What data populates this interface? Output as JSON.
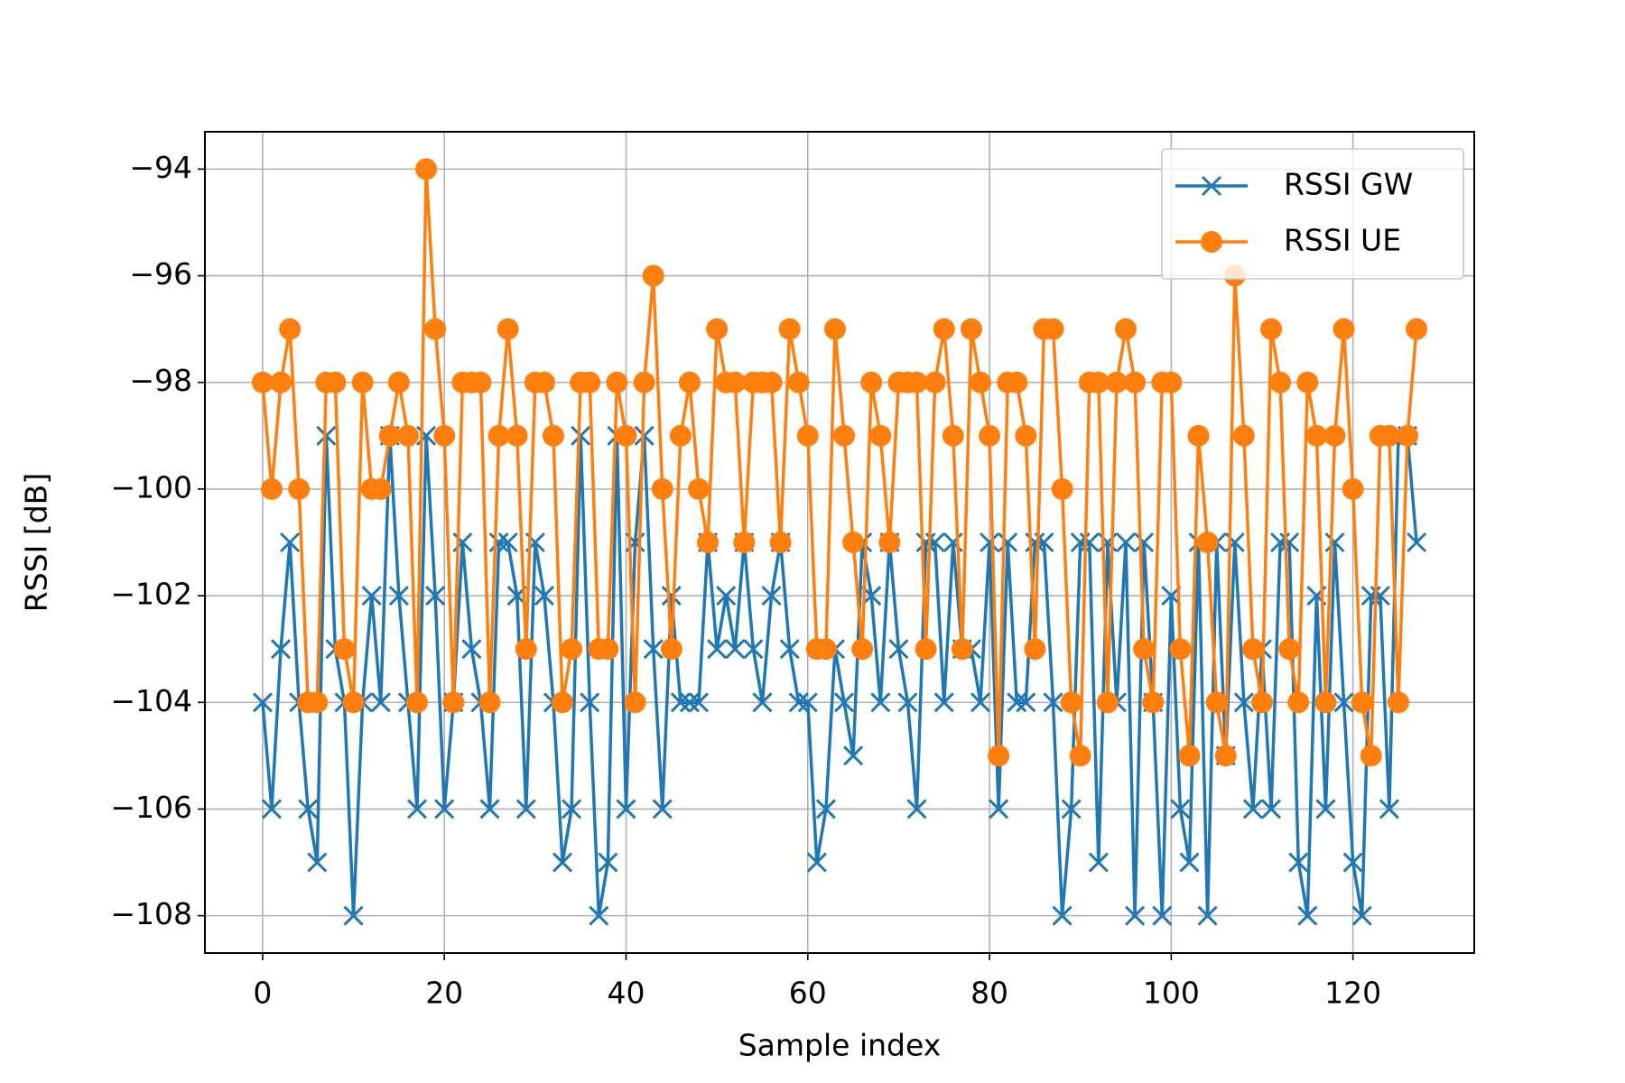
{
  "chart_data": {
    "type": "line",
    "xlabel": "Sample index",
    "ylabel": "RSSI [dB]",
    "x": [
      0,
      1,
      2,
      3,
      4,
      5,
      6,
      7,
      8,
      9,
      10,
      11,
      12,
      13,
      14,
      15,
      16,
      17,
      18,
      19,
      20,
      21,
      22,
      23,
      24,
      25,
      26,
      27,
      28,
      29,
      30,
      31,
      32,
      33,
      34,
      35,
      36,
      37,
      38,
      39,
      40,
      41,
      42,
      43,
      44,
      45,
      46,
      47,
      48,
      49,
      50,
      51,
      52,
      53,
      54,
      55,
      56,
      57,
      58,
      59,
      60,
      61,
      62,
      63,
      64,
      65,
      66,
      67,
      68,
      69,
      70,
      71,
      72,
      73,
      74,
      75,
      76,
      77,
      78,
      79,
      80,
      81,
      82,
      83,
      84,
      85,
      86,
      87,
      88,
      89,
      90,
      91,
      92,
      93,
      94,
      95,
      96,
      97,
      98,
      99,
      100,
      101,
      102,
      103,
      104,
      105,
      106,
      107,
      108,
      109,
      110,
      111,
      112,
      113,
      114,
      115,
      116,
      117,
      118,
      119,
      120,
      121,
      122,
      123,
      124,
      125,
      126,
      127
    ],
    "series": [
      {
        "name": "RSSI GW",
        "color": "#1f77b4",
        "marker": "x",
        "values": [
          -104,
          -106,
          -103,
          -101,
          -104,
          -106,
          -107,
          -99,
          -103,
          -104,
          -108,
          -104,
          -102,
          -104,
          -99,
          -102,
          -104,
          -106,
          -99,
          -102,
          -106,
          -104,
          -101,
          -103,
          -104,
          -106,
          -101,
          -101,
          -102,
          -106,
          -101,
          -102,
          -104,
          -107,
          -106,
          -99,
          -104,
          -108,
          -107,
          -99,
          -106,
          -101,
          -99,
          -103,
          -106,
          -102,
          -104,
          -104,
          -104,
          -101,
          -103,
          -102,
          -103,
          -101,
          -103,
          -104,
          -102,
          -101,
          -103,
          -104,
          -104,
          -107,
          -106,
          -103,
          -104,
          -105,
          -101,
          -102,
          -104,
          -101,
          -103,
          -104,
          -106,
          -101,
          -101,
          -104,
          -101,
          -103,
          -103,
          -104,
          -101,
          -106,
          -101,
          -104,
          -104,
          -101,
          -101,
          -104,
          -108,
          -106,
          -101,
          -101,
          -107,
          -101,
          -104,
          -101,
          -108,
          -101,
          -104,
          -108,
          -102,
          -106,
          -107,
          -101,
          -108,
          -101,
          -105,
          -101,
          -104,
          -106,
          -103,
          -106,
          -101,
          -101,
          -107,
          -108,
          -102,
          -106,
          -101,
          -104,
          -107,
          -108,
          -102,
          -102,
          -106,
          -99,
          -99,
          -101
        ]
      },
      {
        "name": "RSSI UE",
        "color": "#ff7f0e",
        "marker": "o",
        "values": [
          -98,
          -100,
          -98,
          -97,
          -100,
          -104,
          -104,
          -98,
          -98,
          -103,
          -104,
          -98,
          -100,
          -100,
          -99,
          -98,
          -99,
          -104,
          -94,
          -97,
          -99,
          -104,
          -98,
          -98,
          -98,
          -104,
          -99,
          -97,
          -99,
          -103,
          -98,
          -98,
          -99,
          -104,
          -103,
          -98,
          -98,
          -103,
          -103,
          -98,
          -99,
          -104,
          -98,
          -96,
          -100,
          -103,
          -99,
          -98,
          -100,
          -101,
          -97,
          -98,
          -98,
          -101,
          -98,
          -98,
          -98,
          -101,
          -97,
          -98,
          -99,
          -103,
          -103,
          -97,
          -99,
          -101,
          -103,
          -98,
          -99,
          -101,
          -98,
          -98,
          -98,
          -103,
          -98,
          -97,
          -99,
          -103,
          -97,
          -98,
          -99,
          -105,
          -98,
          -98,
          -99,
          -103,
          -97,
          -97,
          -100,
          -104,
          -105,
          -98,
          -98,
          -104,
          -98,
          -97,
          -98,
          -103,
          -104,
          -98,
          -98,
          -103,
          -105,
          -99,
          -101,
          -104,
          -105,
          -96,
          -99,
          -103,
          -104,
          -97,
          -98,
          -103,
          -104,
          -98,
          -99,
          -104,
          -99,
          -97,
          -100,
          -104,
          -105,
          -99,
          -99,
          -104,
          -99,
          -97
        ]
      }
    ],
    "xlim": [
      -6.35,
      133.35
    ],
    "xticks": [
      0,
      20,
      40,
      60,
      80,
      100,
      120
    ],
    "ylim": [
      -108.7,
      -93.3
    ],
    "yticks": [
      {
        "value": -108,
        "label": "−108"
      },
      {
        "value": -106,
        "label": "−106"
      },
      {
        "value": -104,
        "label": "−104"
      },
      {
        "value": -102,
        "label": "−102"
      },
      {
        "value": -100,
        "label": "−100"
      },
      {
        "value": -98,
        "label": "−98"
      },
      {
        "value": -96,
        "label": "−96"
      },
      {
        "value": -94,
        "label": "−94"
      }
    ],
    "grid": true,
    "legend": "upper right"
  }
}
